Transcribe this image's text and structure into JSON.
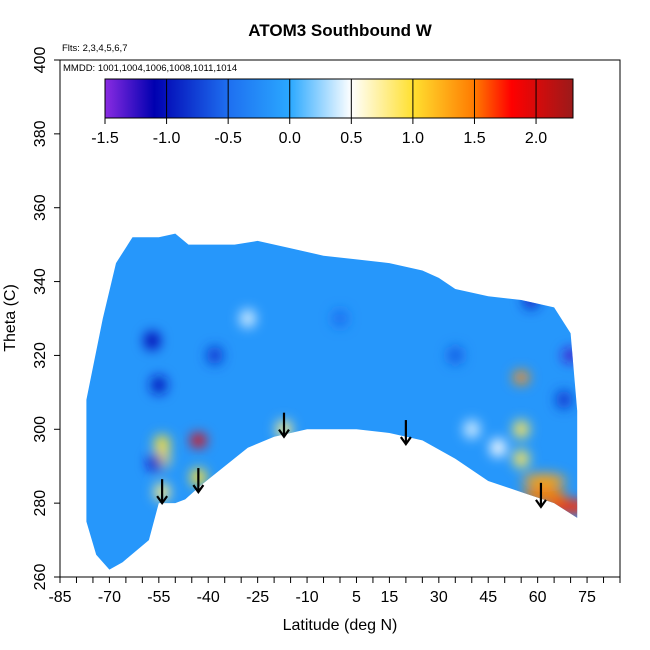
{
  "chart_data": {
    "type": "heatmap",
    "title": "ATOM3 Southbound W",
    "notes": [
      "Flts: 2,3,4,5,6,7",
      "MMDD: 1001,1004,1006,1008,1011,1014"
    ],
    "xlabel": "Latitude (deg N)",
    "ylabel": "Theta (C)",
    "xlim": [
      -85,
      85
    ],
    "ylim": [
      260,
      400
    ],
    "x_ticks_labeled": [
      -85,
      -70,
      -55,
      -40,
      -25,
      -10,
      5,
      15,
      30,
      45,
      60,
      75
    ],
    "x_ticks_minor_step": 5,
    "y_ticks": [
      260,
      280,
      300,
      320,
      340,
      360,
      380,
      400
    ],
    "colorbar": {
      "orientation": "horizontal",
      "placement": "top-inside",
      "range": [
        -1.5,
        2.3
      ],
      "tick_values": [
        -1.5,
        -1.0,
        -0.5,
        0.0,
        0.5,
        1.0,
        1.5,
        2.0
      ],
      "tick_labels": [
        "-1.5",
        "-1.0",
        "-0.5",
        "0.0",
        "0.5",
        "1.0",
        "1.5",
        "2.0"
      ],
      "stops": [
        {
          "value": -1.5,
          "color": "#8a2be2"
        },
        {
          "value": -1.1,
          "color": "#0000b0"
        },
        {
          "value": -0.5,
          "color": "#1e6ff0"
        },
        {
          "value": 0.0,
          "color": "#2aa8ff"
        },
        {
          "value": 0.5,
          "color": "#ffffff"
        },
        {
          "value": 1.0,
          "color": "#ffe030"
        },
        {
          "value": 1.5,
          "color": "#ff7a00"
        },
        {
          "value": 1.8,
          "color": "#ff0000"
        },
        {
          "value": 2.3,
          "color": "#9b1a1a"
        }
      ]
    },
    "field_envelope": {
      "top": [
        [
          -77,
          308
        ],
        [
          -72,
          330
        ],
        [
          -68,
          345
        ],
        [
          -63,
          352
        ],
        [
          -55,
          352
        ],
        [
          -50,
          353
        ],
        [
          -46,
          350
        ],
        [
          -40,
          350
        ],
        [
          -32,
          350
        ],
        [
          -25,
          351
        ],
        [
          -15,
          349
        ],
        [
          -5,
          347
        ],
        [
          5,
          346
        ],
        [
          15,
          345
        ],
        [
          25,
          343
        ],
        [
          30,
          341
        ],
        [
          35,
          338
        ],
        [
          40,
          337
        ],
        [
          45,
          336
        ],
        [
          55,
          335
        ],
        [
          65,
          333
        ],
        [
          70,
          326
        ],
        [
          72,
          305
        ]
      ],
      "bottom": [
        [
          72,
          276
        ],
        [
          65,
          280
        ],
        [
          55,
          283
        ],
        [
          45,
          286
        ],
        [
          35,
          292
        ],
        [
          25,
          297
        ],
        [
          15,
          299
        ],
        [
          5,
          300
        ],
        [
          -10,
          300
        ],
        [
          -20,
          298
        ],
        [
          -28,
          295
        ],
        [
          -35,
          290
        ],
        [
          -42,
          285
        ],
        [
          -47,
          281
        ],
        [
          -50,
          280
        ],
        [
          -55,
          280
        ],
        [
          -58,
          270
        ],
        [
          -66,
          264
        ],
        [
          -70,
          262
        ],
        [
          -74,
          266
        ],
        [
          -77,
          275
        ]
      ]
    },
    "anomalies": [
      {
        "lat": -54,
        "theta": 296,
        "value": 1.0
      },
      {
        "lat": -54,
        "theta": 292,
        "value": 0.9
      },
      {
        "lat": -54,
        "theta": 283,
        "value": 0.8
      },
      {
        "lat": -43,
        "theta": 297,
        "value": 1.9
      },
      {
        "lat": -43,
        "theta": 287,
        "value": 1.0
      },
      {
        "lat": -17,
        "theta": 300,
        "value": 0.8
      },
      {
        "lat": 55,
        "theta": 314,
        "value": 1.4
      },
      {
        "lat": 55,
        "theta": 300,
        "value": 0.9
      },
      {
        "lat": 55,
        "theta": 292,
        "value": 0.9
      },
      {
        "lat": 62,
        "theta": 286,
        "value": 1.3
      },
      {
        "lat": 62,
        "theta": 282,
        "value": 1.5
      },
      {
        "lat": 70,
        "theta": 279,
        "value": 1.7
      },
      {
        "lat": -57,
        "theta": 324,
        "value": -1.1
      },
      {
        "lat": -55,
        "theta": 312,
        "value": -1.0
      },
      {
        "lat": -56,
        "theta": 291,
        "value": -1.2
      },
      {
        "lat": -38,
        "theta": 320,
        "value": -0.8
      },
      {
        "lat": 58,
        "theta": 335,
        "value": -0.9
      },
      {
        "lat": 70,
        "theta": 320,
        "value": -1.3
      },
      {
        "lat": 68,
        "theta": 308,
        "value": -0.8
      },
      {
        "lat": 35,
        "theta": 320,
        "value": -0.6
      },
      {
        "lat": 0,
        "theta": 330,
        "value": -0.5
      },
      {
        "lat": 40,
        "theta": 300,
        "value": 0.4
      },
      {
        "lat": -28,
        "theta": 330,
        "value": 0.4
      },
      {
        "lat": 48,
        "theta": 295,
        "value": 0.5
      }
    ],
    "arrows": [
      {
        "lat": -54,
        "theta": 280
      },
      {
        "lat": -43,
        "theta": 283
      },
      {
        "lat": -17,
        "theta": 298
      },
      {
        "lat": 20,
        "theta": 296
      },
      {
        "lat": 61,
        "theta": 279
      }
    ]
  }
}
